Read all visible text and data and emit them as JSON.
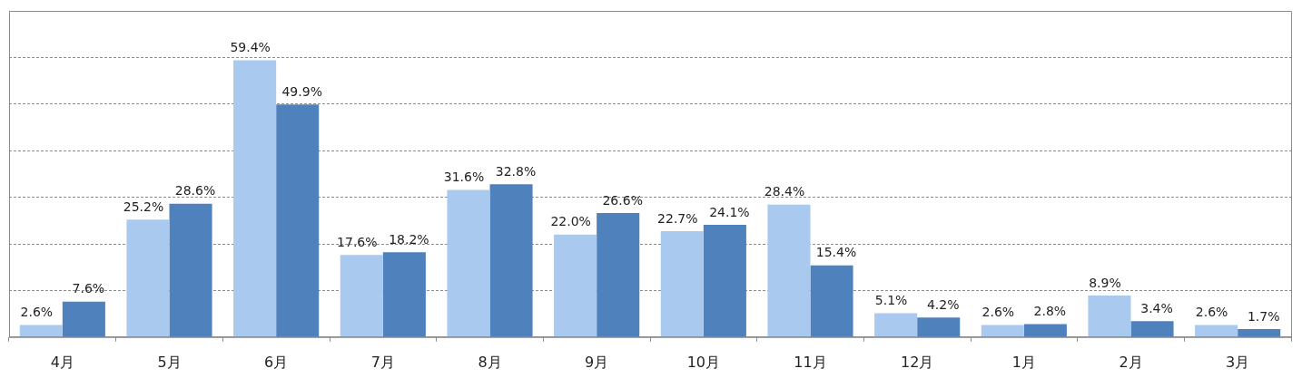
{
  "chart_data": {
    "type": "bar",
    "categories": [
      "4月",
      "5月",
      "6月",
      "7月",
      "8月",
      "9月",
      "10月",
      "11月",
      "12月",
      "1月",
      "2月",
      "3月"
    ],
    "series": [
      {
        "color": "#a9c9ef",
        "values": [
          2.6,
          25.2,
          59.4,
          17.6,
          31.6,
          22.0,
          22.7,
          28.4,
          5.1,
          2.6,
          8.9,
          2.6
        ],
        "value_labels": [
          "2.6%",
          "25.2%",
          "59.4%",
          "17.6%",
          "31.6%",
          "22.0%",
          "22.7%",
          "28.4%",
          "5.1%",
          "2.6%",
          "8.9%",
          "2.6%"
        ]
      },
      {
        "color": "#4f81bd",
        "values": [
          7.6,
          28.6,
          49.9,
          18.2,
          32.8,
          26.6,
          24.1,
          15.4,
          4.2,
          2.8,
          3.4,
          1.7
        ],
        "value_labels": [
          "7.6%",
          "28.6%",
          "49.9%",
          "18.2%",
          "32.8%",
          "26.6%",
          "24.1%",
          "15.4%",
          "4.2%",
          "2.8%",
          "3.4%",
          "1.7%"
        ]
      }
    ],
    "ylim": [
      0,
      70
    ],
    "yticks": [
      0,
      {
        "value": 10,
        "label": null
      },
      {
        "value": 20,
        "label": null
      },
      {
        "value": 30,
        "label": null
      },
      {
        "value": 40,
        "label": null
      },
      {
        "value": 50,
        "label": null
      },
      {
        "value": 60,
        "label": null
      },
      {
        "value": 70,
        "label": null
      }
    ],
    "tick_labels": "x",
    "grid": "y",
    "legend": false
  }
}
